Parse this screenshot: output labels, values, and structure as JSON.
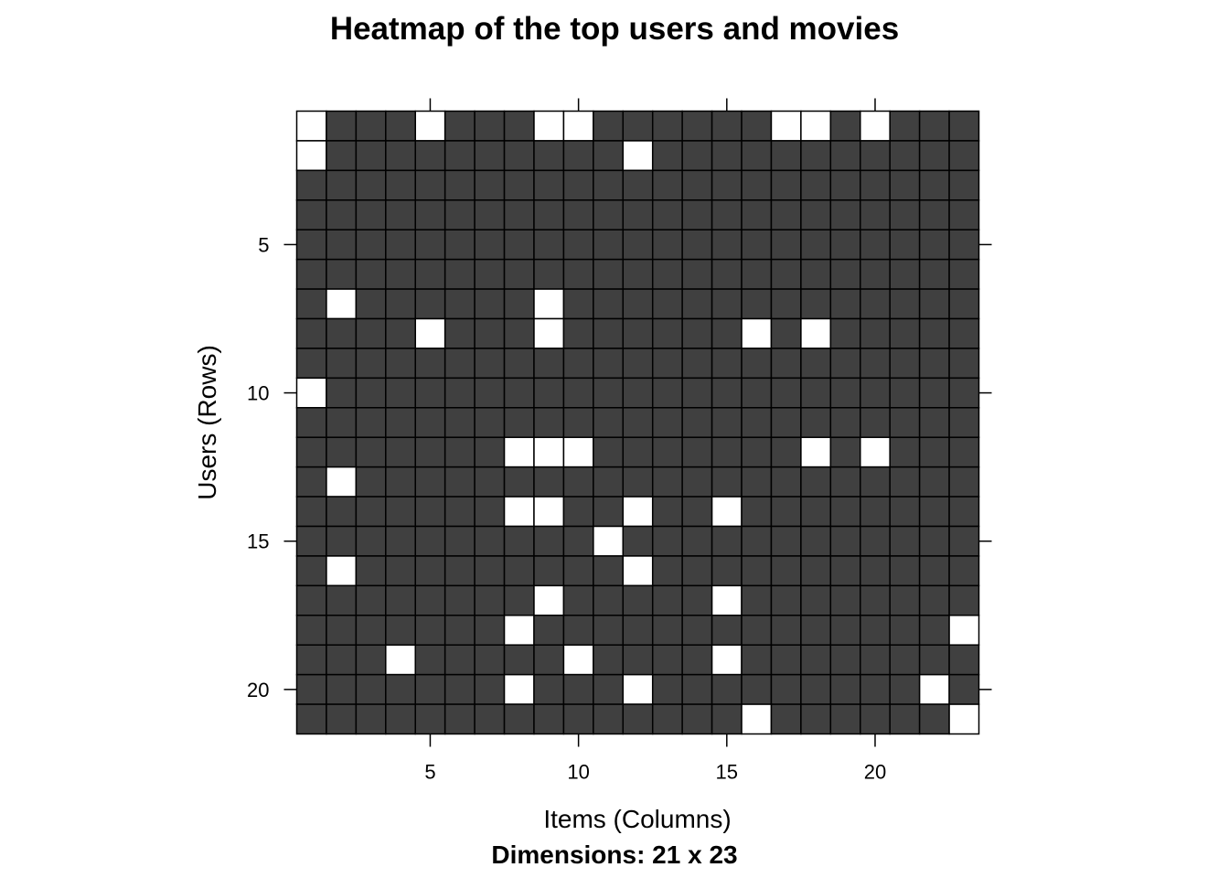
{
  "chart_data": {
    "type": "heatmap",
    "title": "Heatmap of the top users and movies",
    "xlabel": "Items (Columns)",
    "ylabel": "Users (Rows)",
    "subtitle": "Dimensions: 21 x 23",
    "n_rows": 21,
    "n_cols": 23,
    "x_ticks": [
      5,
      10,
      15,
      20
    ],
    "y_ticks": [
      5,
      10,
      15,
      20
    ],
    "x_tick_labels": [
      "5",
      "10",
      "15",
      "20"
    ],
    "y_tick_labels": [
      "5",
      "10",
      "15",
      "20"
    ],
    "filled_color": "#404040",
    "empty_color": "#ffffff",
    "grid_color": "#000000",
    "empty_cells": [
      [
        1,
        1
      ],
      [
        2,
        1
      ],
      [
        1,
        5
      ],
      [
        1,
        9
      ],
      [
        1,
        10
      ],
      [
        1,
        17
      ],
      [
        1,
        18
      ],
      [
        1,
        20
      ],
      [
        2,
        12
      ],
      [
        7,
        2
      ],
      [
        7,
        9
      ],
      [
        8,
        9
      ],
      [
        8,
        5
      ],
      [
        8,
        16
      ],
      [
        8,
        18
      ],
      [
        10,
        1
      ],
      [
        12,
        8
      ],
      [
        12,
        9
      ],
      [
        12,
        10
      ],
      [
        12,
        18
      ],
      [
        12,
        20
      ],
      [
        13,
        2
      ],
      [
        14,
        8
      ],
      [
        14,
        9
      ],
      [
        14,
        12
      ],
      [
        14,
        15
      ],
      [
        15,
        11
      ],
      [
        16,
        2
      ],
      [
        16,
        12
      ],
      [
        17,
        9
      ],
      [
        17,
        15
      ],
      [
        18,
        8
      ],
      [
        18,
        23
      ],
      [
        19,
        4
      ],
      [
        19,
        10
      ],
      [
        19,
        15
      ],
      [
        20,
        8
      ],
      [
        20,
        12
      ],
      [
        20,
        22
      ],
      [
        21,
        16
      ],
      [
        21,
        23
      ]
    ]
  }
}
